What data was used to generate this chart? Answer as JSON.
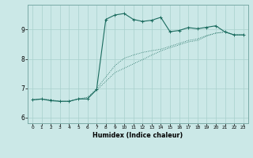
{
  "title": "",
  "xlabel": "Humidex (Indice chaleur)",
  "ylabel": "",
  "bg_color": "#cbe8e7",
  "line_color": "#1a6b5e",
  "grid_color": "#a8d0cc",
  "xlim": [
    -0.5,
    23.5
  ],
  "ylim": [
    5.8,
    9.85
  ],
  "xticks": [
    0,
    1,
    2,
    3,
    4,
    5,
    6,
    7,
    8,
    9,
    10,
    11,
    12,
    13,
    14,
    15,
    16,
    17,
    18,
    19,
    20,
    21,
    22,
    23
  ],
  "yticks": [
    6,
    7,
    8,
    9
  ],
  "line1_x": [
    0,
    1,
    2,
    3,
    4,
    5,
    6,
    7,
    8,
    9,
    10,
    11,
    12,
    13,
    14,
    15,
    16,
    17,
    18,
    19,
    20,
    21,
    22,
    23
  ],
  "line1_y": [
    6.6,
    6.63,
    6.57,
    6.55,
    6.55,
    6.63,
    6.63,
    6.95,
    9.35,
    9.5,
    9.55,
    9.35,
    9.28,
    9.32,
    9.42,
    8.93,
    8.97,
    9.07,
    9.03,
    9.08,
    9.13,
    8.92,
    8.82,
    8.82
  ],
  "line2_x": [
    0,
    1,
    2,
    3,
    4,
    5,
    6,
    7,
    8,
    9,
    10,
    11,
    12,
    13,
    14,
    15,
    16,
    17,
    18,
    19,
    20,
    21,
    22,
    23
  ],
  "line2_y": [
    6.6,
    6.62,
    6.6,
    6.55,
    6.55,
    6.63,
    6.68,
    6.93,
    7.23,
    7.53,
    7.68,
    7.83,
    7.97,
    8.13,
    8.27,
    8.38,
    8.48,
    8.58,
    8.63,
    8.78,
    8.88,
    8.92,
    8.82,
    8.82
  ],
  "line3_x": [
    0,
    1,
    2,
    3,
    4,
    5,
    6,
    7,
    8,
    9,
    10,
    11,
    12,
    13,
    14,
    15,
    16,
    17,
    18,
    19,
    20,
    21,
    22,
    23
  ],
  "line3_y": [
    6.6,
    6.62,
    6.6,
    6.55,
    6.55,
    6.63,
    6.68,
    6.98,
    7.38,
    7.77,
    8.02,
    8.13,
    8.22,
    8.28,
    8.33,
    8.43,
    8.53,
    8.63,
    8.68,
    8.8,
    8.88,
    8.92,
    8.82,
    8.82
  ]
}
